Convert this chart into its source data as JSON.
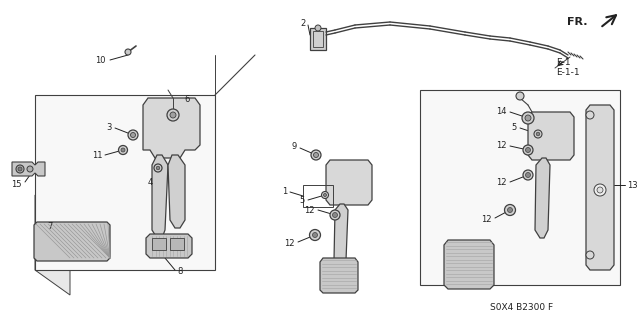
{
  "bg_color": "#ffffff",
  "lc": "#404040",
  "tc": "#222222",
  "diagram_code": "S0X4 B2300 F",
  "fr_label": "FR.",
  "e1": "E-1",
  "e11": "E-1-1",
  "figsize": [
    6.4,
    3.2
  ],
  "dpi": 100
}
